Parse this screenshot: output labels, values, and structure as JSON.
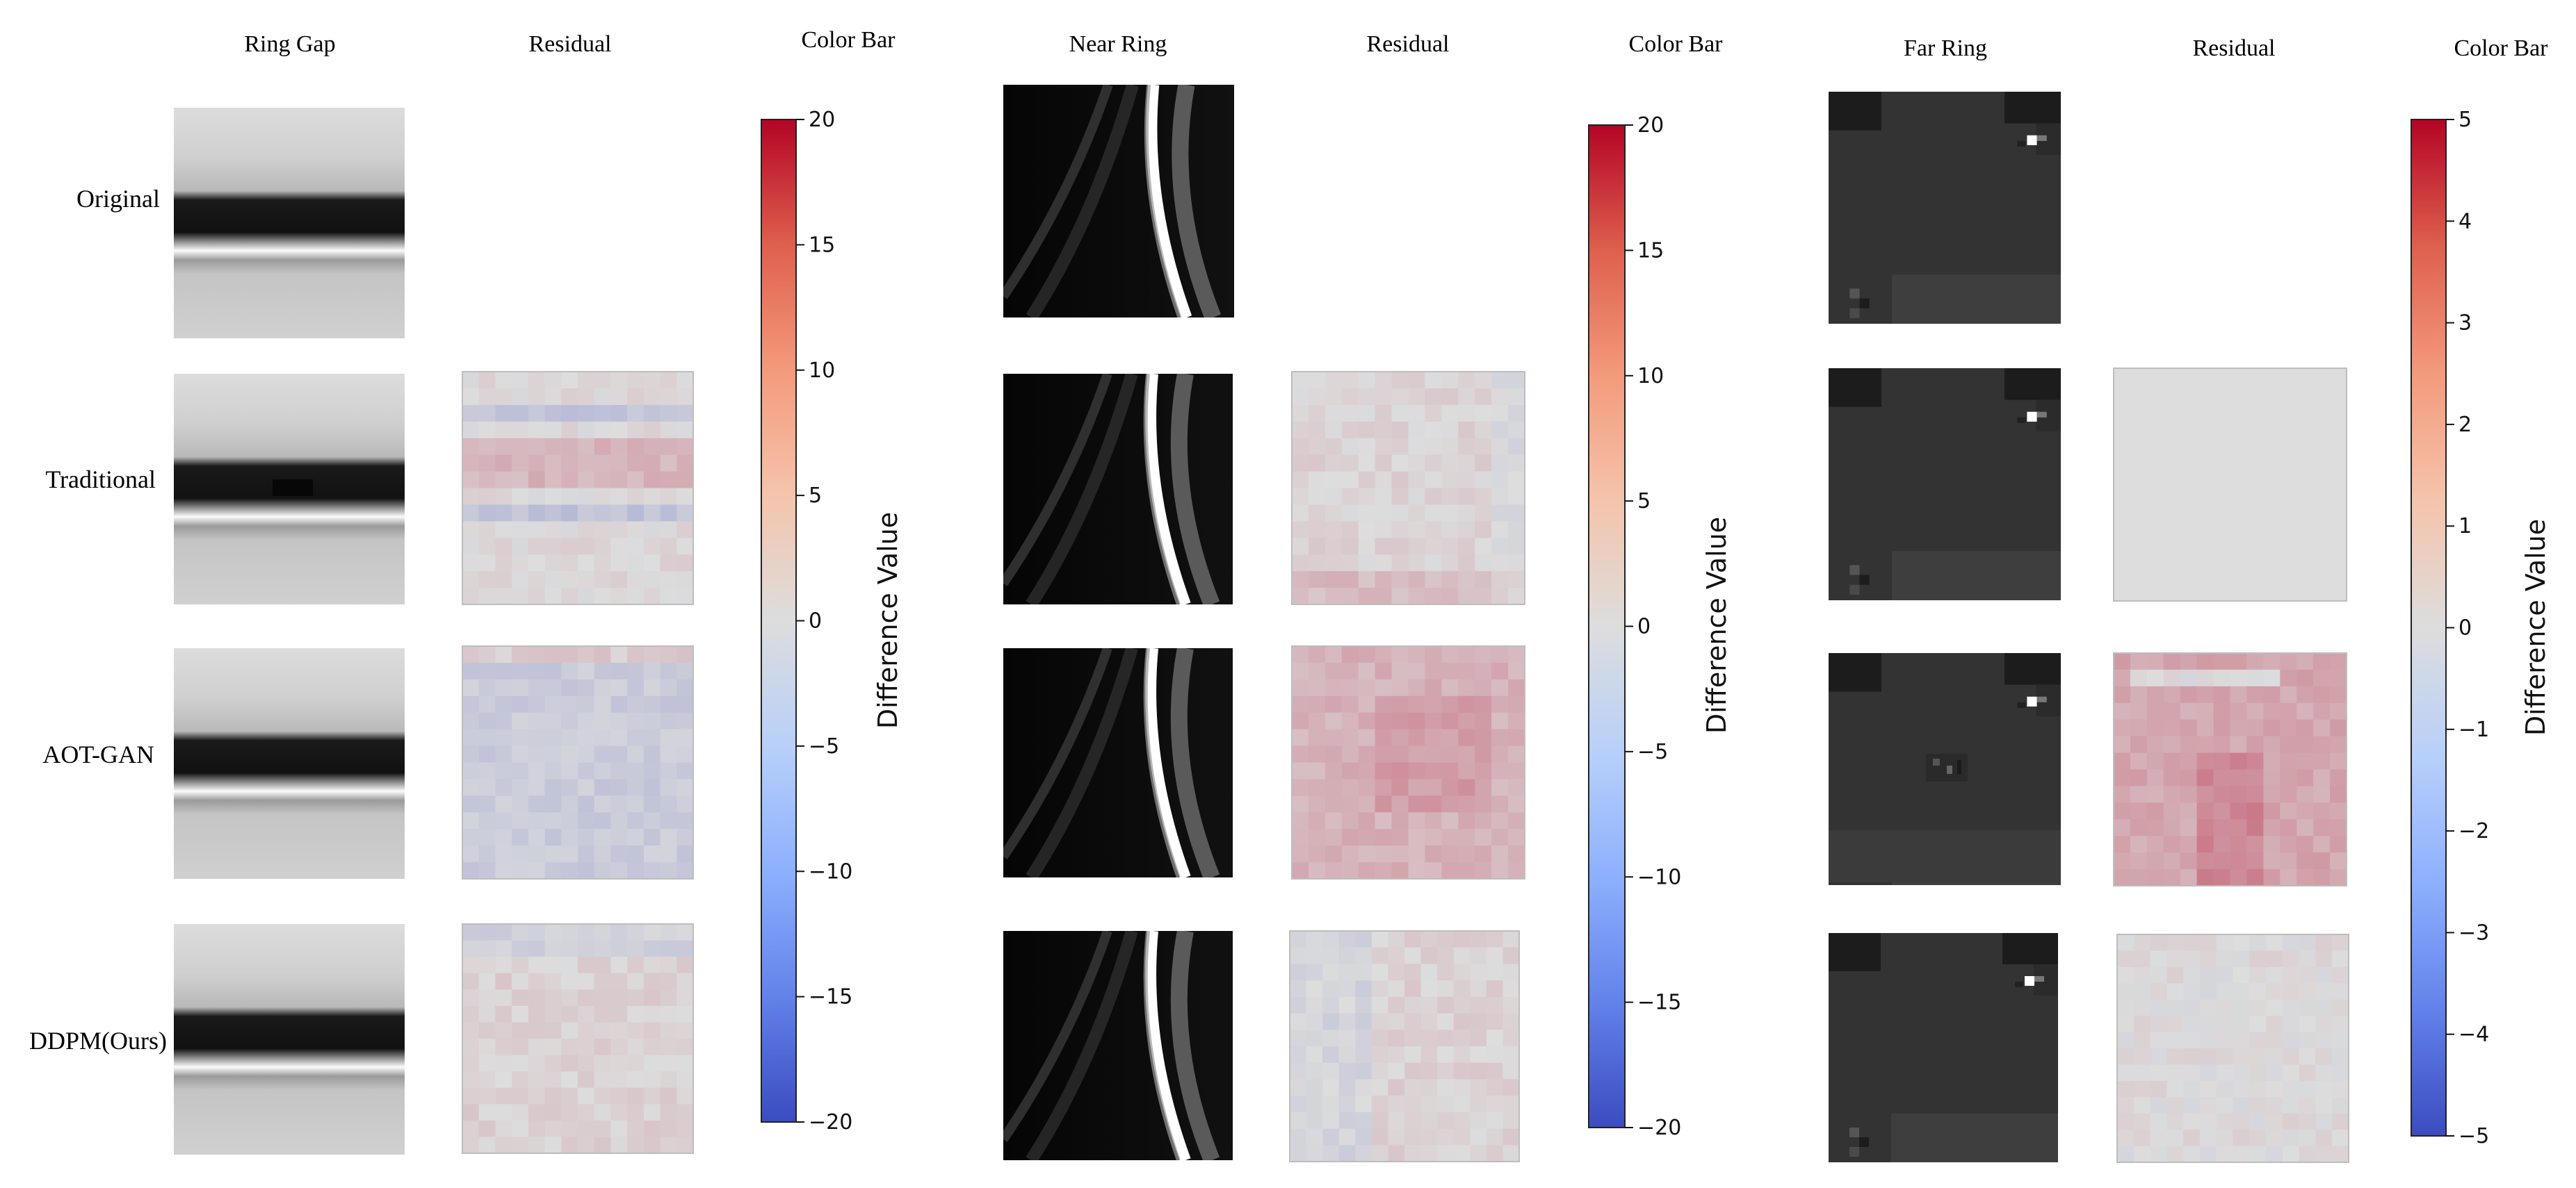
{
  "figure": {
    "panels": [
      {
        "id": "ring-gap",
        "image_header": "Ring Gap",
        "residual_header": "Residual",
        "colorbar_header": "Color Bar",
        "colorbar": {
          "min": -20,
          "max": 20,
          "ticks": [
            "20",
            "15",
            "10",
            "5",
            "0",
            "−5",
            "−10",
            "−15",
            "−20"
          ],
          "tick_values": [
            20,
            15,
            10,
            5,
            0,
            -5,
            -10,
            -15,
            -20
          ],
          "label": "Difference Value"
        }
      },
      {
        "id": "near-ring",
        "image_header": "Near Ring",
        "residual_header": "Residual",
        "colorbar_header": "Color Bar",
        "colorbar": {
          "min": -20,
          "max": 20,
          "ticks": [
            "20",
            "15",
            "10",
            "5",
            "0",
            "−5",
            "−10",
            "−15",
            "−20"
          ],
          "tick_values": [
            20,
            15,
            10,
            5,
            0,
            -5,
            -10,
            -15,
            -20
          ],
          "label": "Difference Value"
        }
      },
      {
        "id": "far-ring",
        "image_header": "Far Ring",
        "residual_header": "Residual",
        "colorbar_header": "Color Bar",
        "colorbar": {
          "min": -5,
          "max": 5,
          "ticks": [
            "5",
            "4",
            "3",
            "2",
            "1",
            "0",
            "−1",
            "−2",
            "−3",
            "−4",
            "−5"
          ],
          "tick_values": [
            5,
            4,
            3,
            2,
            1,
            0,
            -1,
            -2,
            -3,
            -4,
            -5
          ],
          "label": "Difference Value"
        }
      }
    ],
    "rows": [
      "Original",
      "Traditional",
      "AOT-GAN",
      "DDPM(Ours)"
    ],
    "colors": {
      "cmap_low": "#3b4cc0",
      "cmap_mid": "#dddddd",
      "cmap_high": "#b40426",
      "background": "#ffffff"
    }
  }
}
